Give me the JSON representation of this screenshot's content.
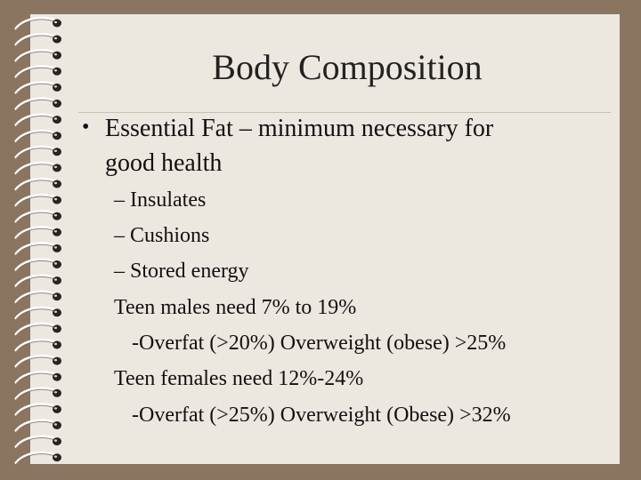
{
  "slide": {
    "title": "Body Composition",
    "bullet": "•",
    "main_point": {
      "line1": "Essential Fat – minimum necessary for",
      "line2": "good health"
    },
    "sub_points": [
      "– Insulates",
      "– Cushions",
      "– Stored energy"
    ],
    "males": {
      "need": "Teen males need 7% to 19%",
      "detail": "-Overfat (>20%) Overweight (obese)  >25%"
    },
    "females": {
      "need": "Teen females need 12%-24%",
      "detail": "-Overfat (>25%) Overweight (Obese) >32%"
    }
  },
  "colors": {
    "frame": "#8a7561",
    "paper": "#ece8e0",
    "text": "#111111"
  }
}
